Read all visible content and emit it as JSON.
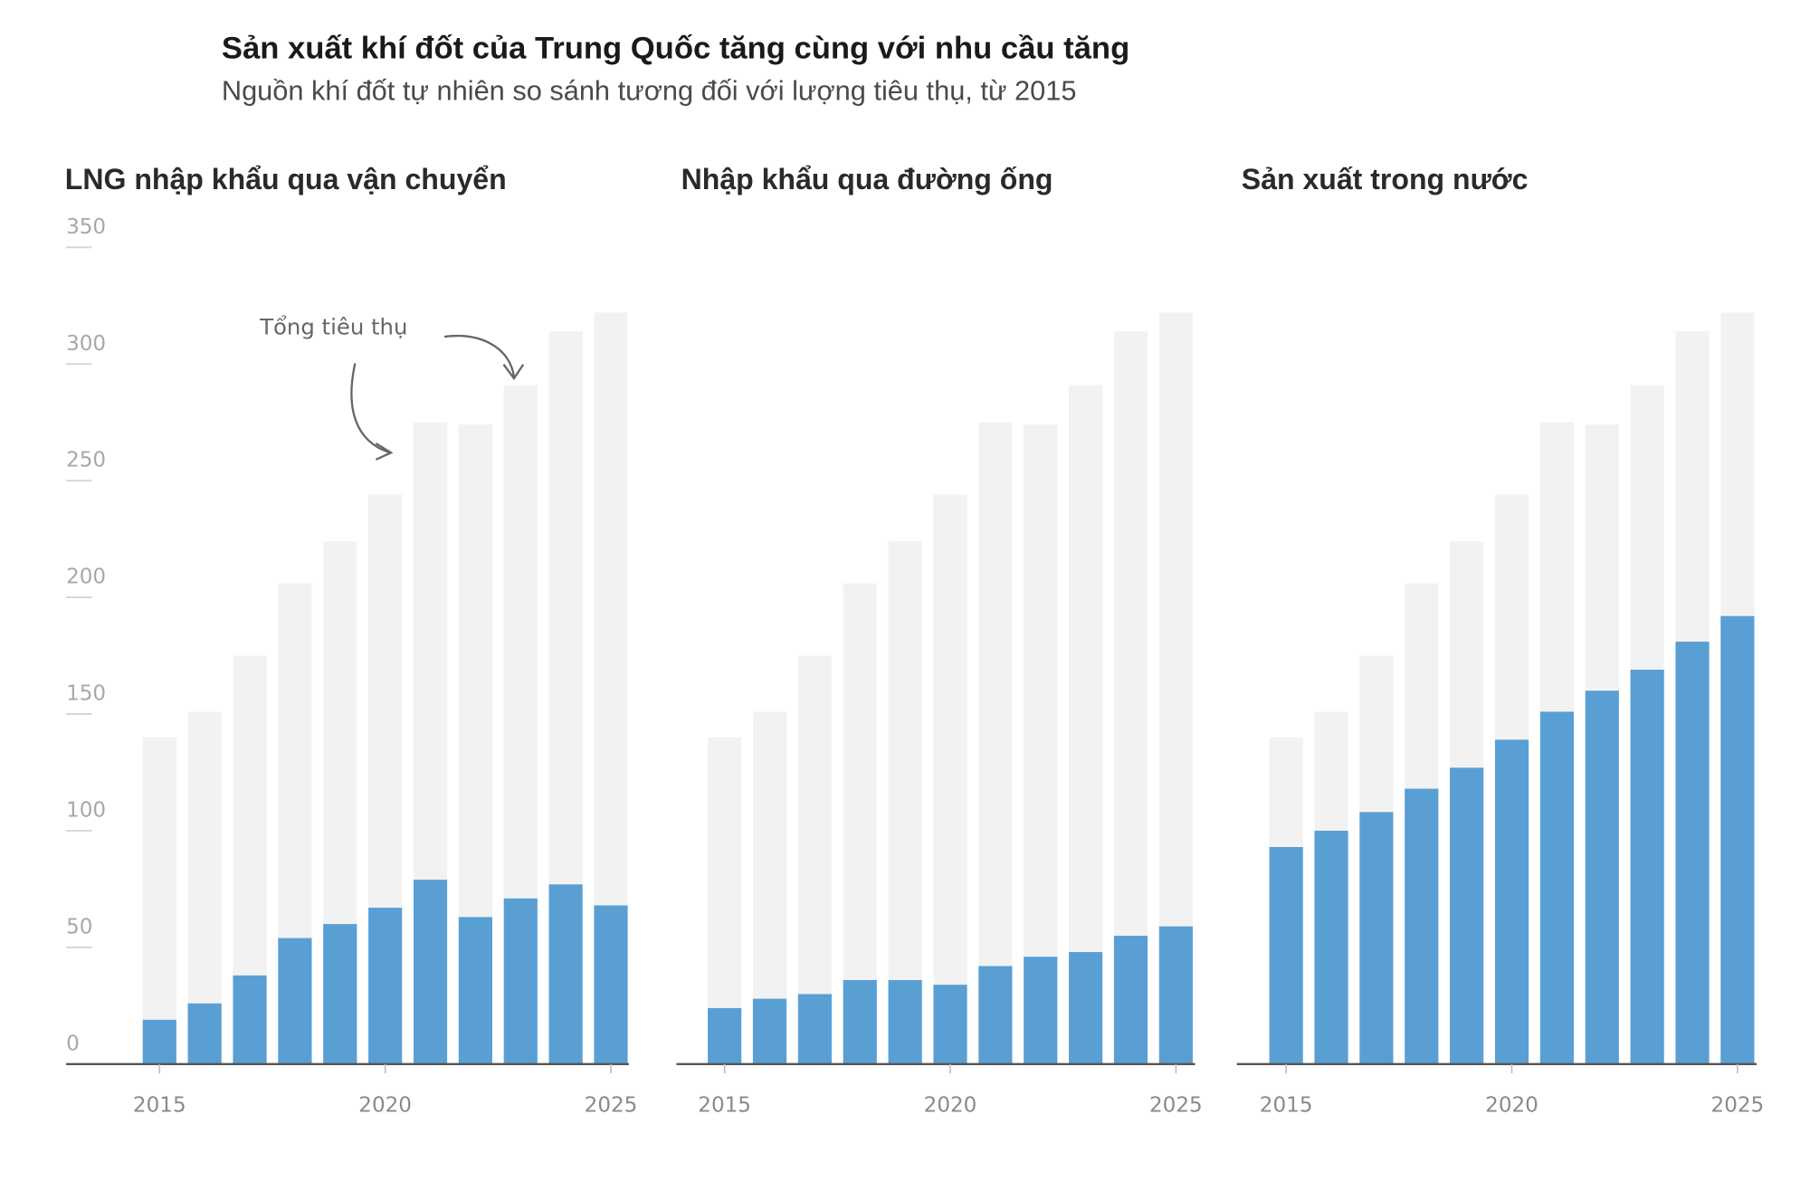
{
  "title": "Sản xuất khí đốt của Trung Quốc tăng cùng với nhu cầu tăng",
  "subtitle": "Nguồn khí đốt tự nhiên so sánh tương đối với lượng tiêu thụ, từ 2015",
  "annotation": "Tổng tiêu thụ",
  "colors": {
    "source": "#5a9fd4",
    "total": "#f2f2f2",
    "axis": "#555555"
  },
  "chart_data": [
    {
      "type": "bar",
      "title": "LNG nhập khẩu qua vận chuyển",
      "categories": [
        2015,
        2016,
        2017,
        2018,
        2019,
        2020,
        2021,
        2022,
        2023,
        2024,
        2025
      ],
      "x_tick_labels": [
        "2015",
        "2020",
        "2025"
      ],
      "y_tick_labels": [
        "0",
        "50",
        "100",
        "150",
        "200",
        "250",
        "300",
        "350"
      ],
      "ylim": [
        0,
        350
      ],
      "series": [
        {
          "values": [
            140,
            151,
            175,
            206,
            224,
            244,
            275,
            274,
            291,
            314,
            322
          ]
        },
        {
          "values": [
            19,
            26,
            38,
            54,
            60,
            67,
            79,
            63,
            71,
            77,
            68
          ]
        }
      ]
    },
    {
      "type": "bar",
      "title": "Nhập khẩu qua đường ống",
      "categories": [
        2015,
        2016,
        2017,
        2018,
        2019,
        2020,
        2021,
        2022,
        2023,
        2024,
        2025
      ],
      "x_tick_labels": [
        "2015",
        "2020",
        "2025"
      ],
      "ylim": [
        0,
        350
      ],
      "series": [
        {
          "values": [
            140,
            151,
            175,
            206,
            224,
            244,
            275,
            274,
            291,
            314,
            322
          ]
        },
        {
          "values": [
            24,
            28,
            30,
            36,
            36,
            34,
            42,
            46,
            48,
            55,
            59
          ]
        }
      ]
    },
    {
      "type": "bar",
      "title": "Sản xuất trong nước",
      "categories": [
        2015,
        2016,
        2017,
        2018,
        2019,
        2020,
        2021,
        2022,
        2023,
        2024,
        2025
      ],
      "x_tick_labels": [
        "2015",
        "2020",
        "2025"
      ],
      "ylim": [
        0,
        350
      ],
      "series": [
        {
          "values": [
            140,
            151,
            175,
            206,
            224,
            244,
            275,
            274,
            291,
            314,
            322
          ]
        },
        {
          "values": [
            93,
            100,
            108,
            118,
            127,
            139,
            151,
            160,
            169,
            181,
            192
          ]
        }
      ]
    }
  ]
}
